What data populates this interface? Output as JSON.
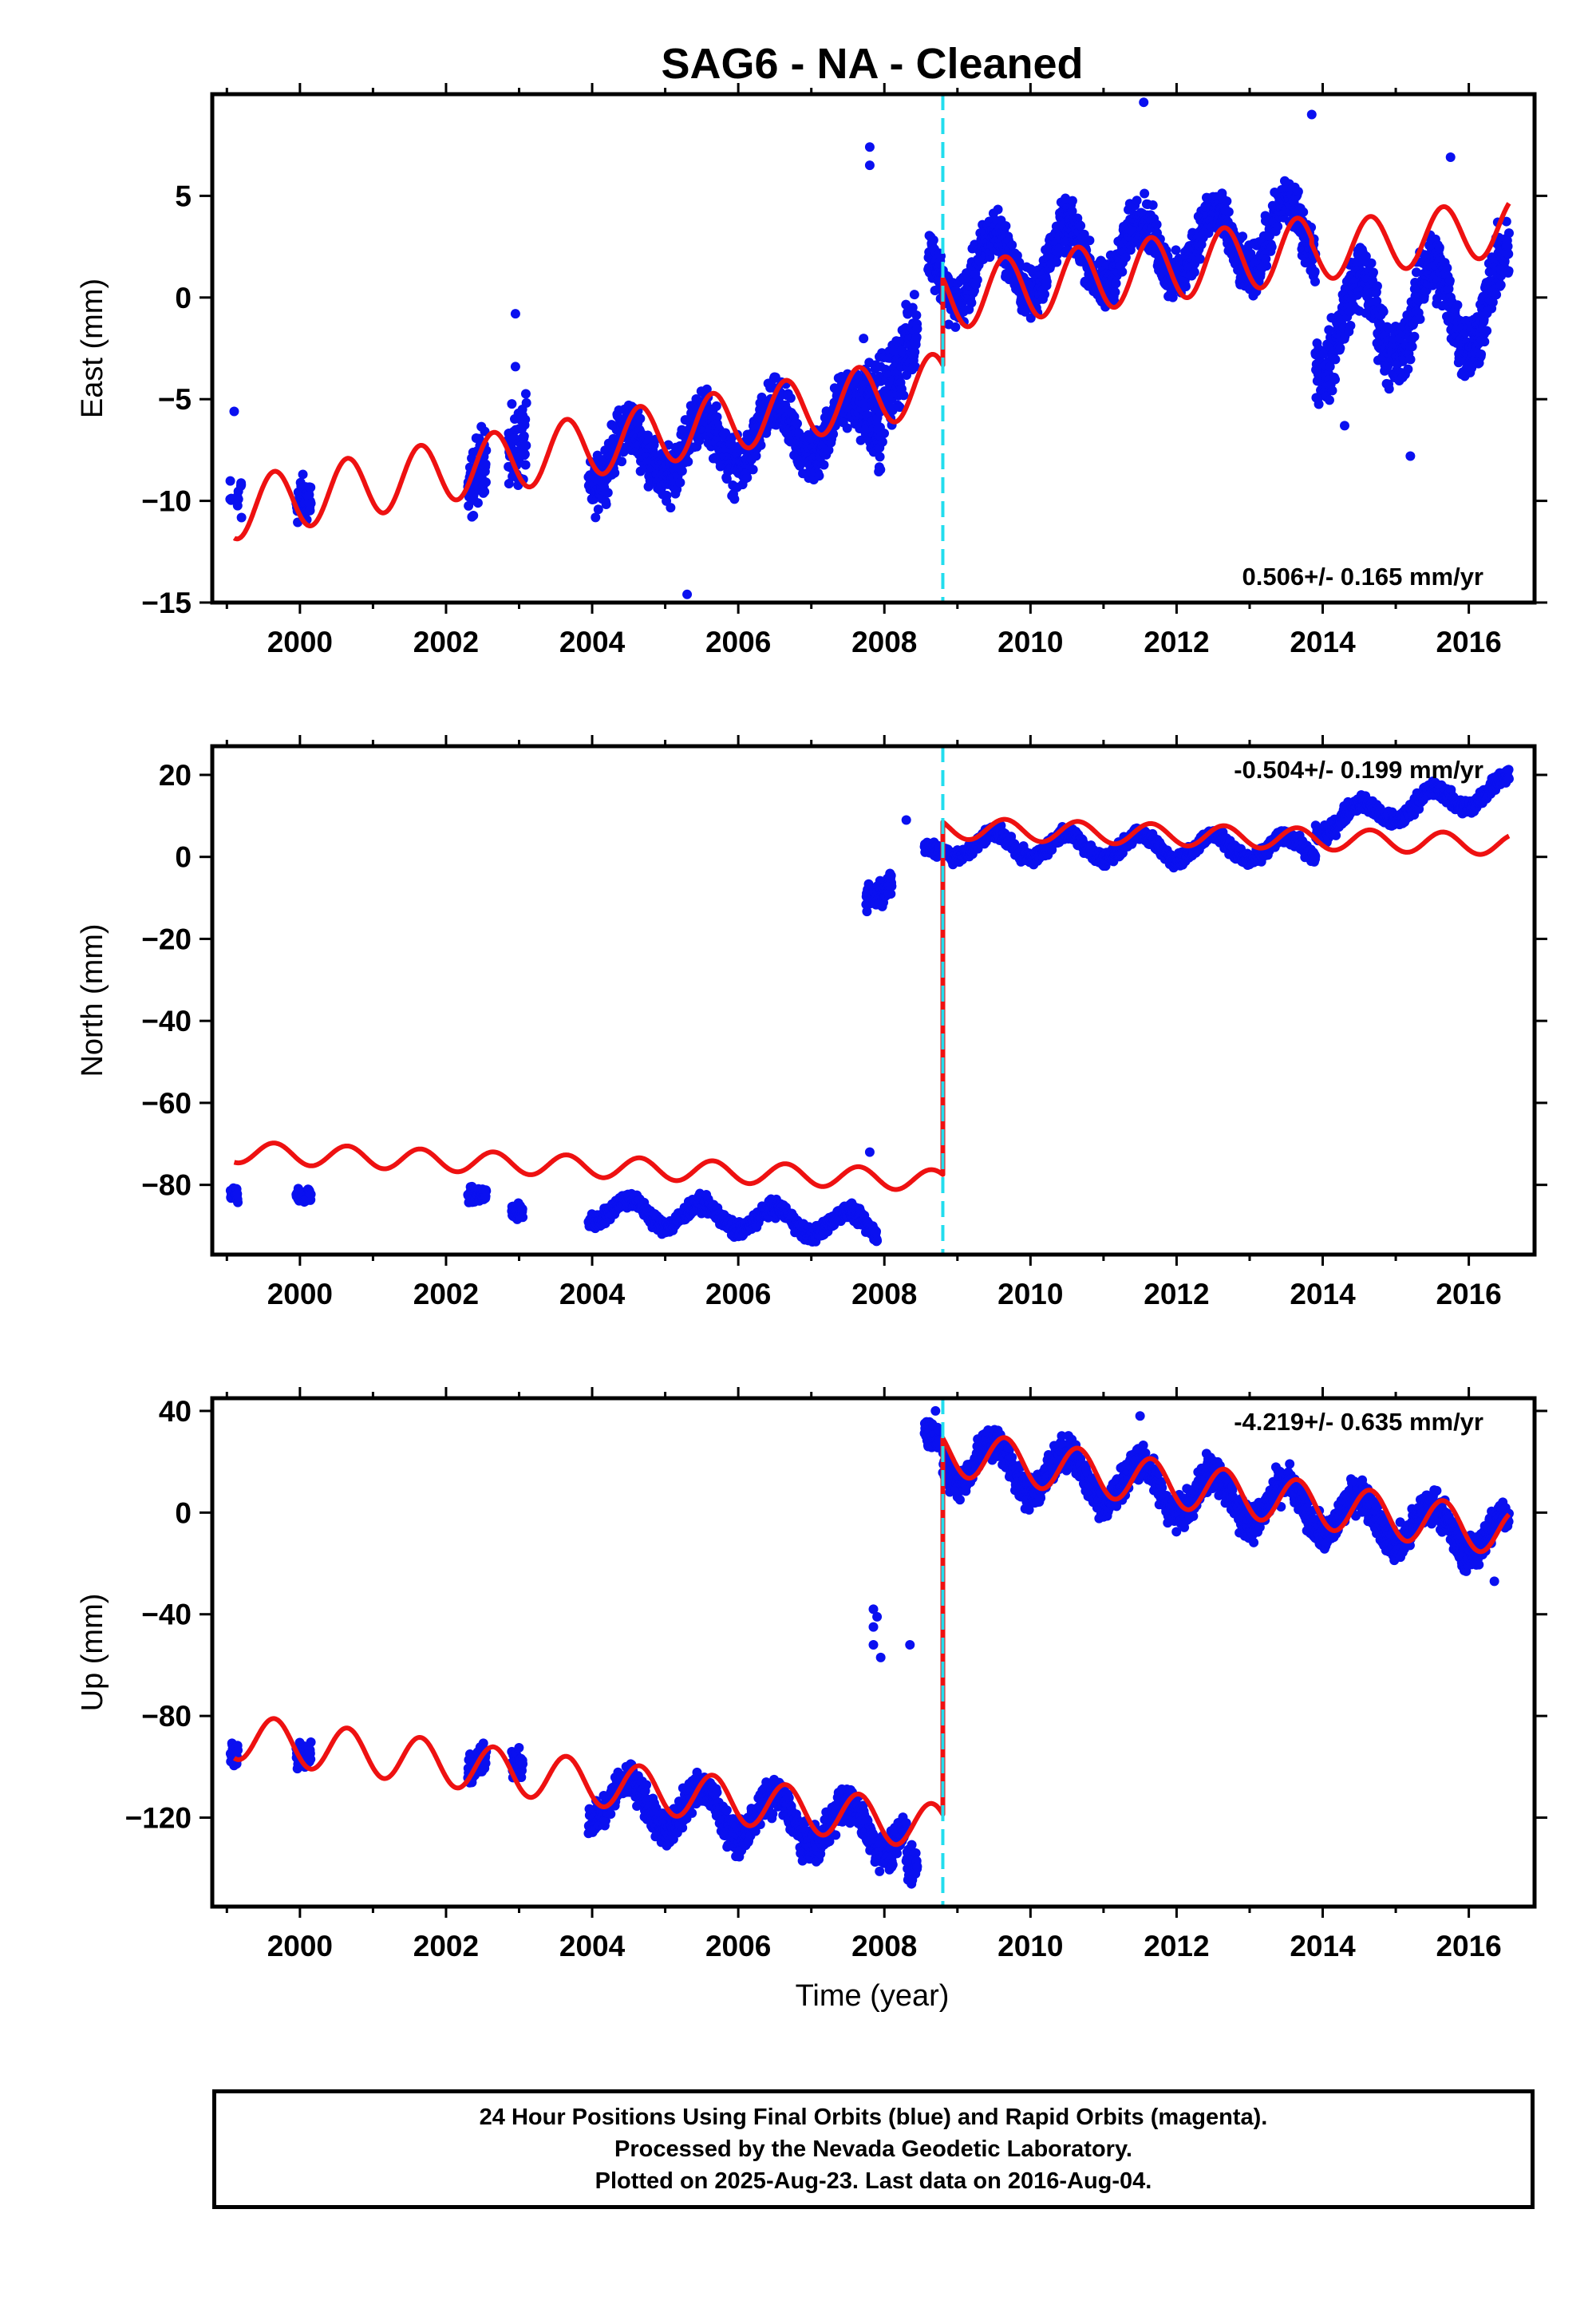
{
  "title": "SAG6  - NA - Cleaned",
  "colors": {
    "data": "#0a10f0",
    "model": "#ee1111",
    "offset": "#22ddee",
    "frame": "#000000"
  },
  "x_axis": {
    "label": "Time (year)",
    "range": [
      1998.8,
      2016.9
    ],
    "ticks": [
      "2000",
      "2002",
      "2004",
      "2006",
      "2008",
      "2010",
      "2012",
      "2014",
      "2016"
    ]
  },
  "footer": {
    "line1": "24 Hour Positions Using Final Orbits (blue) and Rapid Orbits (magenta).",
    "line2": "Processed by the Nevada Geodetic Laboratory.",
    "line3": "Plotted on 2025-Aug-23. Last data on 2016-Aug-04."
  },
  "chart_data": [
    {
      "type": "scatter",
      "ylabel": "East (mm)",
      "xlim": [
        1998.8,
        2016.9
      ],
      "ylim": [
        -15,
        10
      ],
      "yticks": [
        5,
        0,
        -5,
        -10,
        -15
      ],
      "ytick_labels": [
        "5",
        "0",
        "−5",
        "−10",
        "−15"
      ],
      "rate_text": "0.506+/- 0.165 mm/yr",
      "rate_position": "bottom-right",
      "offset_epoch": 2008.8,
      "series": [
        {
          "kind": "points",
          "segments": [
            {
              "x": [
                1999.05,
                1999.15,
                1999.2
              ],
              "base": [
                -10,
                -10,
                -10
              ],
              "amp": 0.5,
              "noise": 1.1
            },
            {
              "x": [
                1999.95,
                2000.15
              ],
              "base": [
                -9.5,
                -9.5
              ],
              "amp": 0.5,
              "noise": 1.0
            },
            {
              "x": [
                2002.3,
                2002.55
              ],
              "base": [
                -10,
                -8
              ],
              "amp": 0.5,
              "noise": 1.4
            },
            {
              "x": [
                2002.85,
                2003.1
              ],
              "base": [
                -7.5,
                -6.5
              ],
              "amp": 0.5,
              "noise": 1.6
            },
            {
              "x": [
                2003.95,
                2007.95
              ],
              "base": [
                -8,
                -6
              ],
              "amp": 1.4,
              "noise": 1.1
            },
            {
              "x": [
                2007.7,
                2008.45
              ],
              "base": [
                -4.5,
                -2.5
              ],
              "amp": 1.0,
              "noise": 1.6
            },
            {
              "x": [
                2008.6,
                2013.9
              ],
              "base": [
                1.2,
                3.2
              ],
              "amp": 1.6,
              "noise": 1.0
            },
            {
              "x": [
                2013.9,
                2016.55
              ],
              "base": [
                -1.5,
                0
              ],
              "amp": 2.2,
              "noise": 1.4
            }
          ],
          "outliers": [
            [
              1999.1,
              -5.6
            ],
            [
              2002.95,
              -0.8
            ],
            [
              2002.95,
              -3.4
            ],
            [
              2003.05,
              -5.8
            ],
            [
              2005.3,
              -14.6
            ],
            [
              2007.8,
              7.4
            ],
            [
              2007.8,
              6.5
            ],
            [
              2011.55,
              9.6
            ],
            [
              2013.85,
              9.0
            ],
            [
              2014.3,
              -6.3
            ],
            [
              2015.2,
              -7.8
            ],
            [
              2015.75,
              6.9
            ]
          ]
        },
        {
          "kind": "model",
          "segments": [
            {
              "x": [
                1999.1,
                2008.8
              ],
              "base": [
                -10.4,
                -4.2
              ],
              "amp": 1.5
            },
            {
              "x": [
                2008.8,
                2013.85
              ],
              "base": [
                0.0,
                2.4
              ],
              "amp": 1.6
            },
            {
              "x": [
                2013.85,
                2016.55
              ],
              "base": [
                2.2,
                3.5
              ],
              "amp": 1.4
            }
          ]
        }
      ]
    },
    {
      "type": "scatter",
      "ylabel": "North (mm)",
      "xlim": [
        1998.8,
        2016.9
      ],
      "ylim": [
        -97,
        27
      ],
      "yticks": [
        20,
        0,
        -20,
        -40,
        -60,
        -80
      ],
      "ytick_labels": [
        "20",
        "0",
        "−20",
        "−40",
        "−60",
        "−80"
      ],
      "rate_text": "-0.504+/- 0.199 mm/yr",
      "rate_position": "top-right",
      "offset_epoch": 2008.8,
      "series": [
        {
          "kind": "points",
          "segments": [
            {
              "x": [
                1999.05,
                1999.15
              ],
              "base": [
                -82,
                -82
              ],
              "amp": 0.5,
              "noise": 1.5
            },
            {
              "x": [
                1999.95,
                2000.15
              ],
              "base": [
                -82,
                -82
              ],
              "amp": 0.5,
              "noise": 1.5
            },
            {
              "x": [
                2002.3,
                2002.55
              ],
              "base": [
                -83,
                -83
              ],
              "amp": 0.5,
              "noise": 1.5
            },
            {
              "x": [
                2002.9,
                2003.05
              ],
              "base": [
                -86,
                -86
              ],
              "amp": 0.5,
              "noise": 1.8
            },
            {
              "x": [
                2003.95,
                2007.9
              ],
              "base": [
                -86,
                -90
              ],
              "amp": 3.0,
              "noise": 1.6
            },
            {
              "x": [
                2007.75,
                2008.1
              ],
              "base": [
                -10,
                -6
              ],
              "amp": 1.0,
              "noise": 2.5
            },
            {
              "x": [
                2008.55,
                2008.75
              ],
              "base": [
                2,
                2
              ],
              "amp": 0.5,
              "noise": 1.5
            },
            {
              "x": [
                2008.8,
                2013.9
              ],
              "base": [
                3,
                2
              ],
              "amp": 3.0,
              "noise": 1.4
            },
            {
              "x": [
                2013.9,
                2016.55
              ],
              "base": [
                8,
                17
              ],
              "amp": 3.0,
              "noise": 1.6
            }
          ],
          "outliers": [
            [
              2007.8,
              -72
            ],
            [
              2008.3,
              9
            ]
          ]
        },
        {
          "kind": "model",
          "segments": [
            {
              "x": [
                1999.1,
                2008.8
              ],
              "base": [
                -72,
                -79
              ],
              "amp": 2.6
            },
            {
              "x": [
                2008.8,
                2016.55
              ],
              "base": [
                7,
                3
              ],
              "amp": 2.6
            }
          ]
        }
      ]
    },
    {
      "type": "scatter",
      "ylabel": "Up (mm)",
      "xlim": [
        1998.8,
        2016.9
      ],
      "ylim": [
        -155,
        45
      ],
      "yticks": [
        40,
        0,
        -40,
        -80,
        -120
      ],
      "ytick_labels": [
        "40",
        "0",
        "−40",
        "−80",
        "−120"
      ],
      "rate_text": "-4.219+/- 0.635 mm/yr",
      "rate_position": "top-right",
      "offset_epoch": 2008.8,
      "series": [
        {
          "kind": "points",
          "segments": [
            {
              "x": [
                1999.05,
                1999.15
              ],
              "base": [
                -93,
                -93
              ],
              "amp": 1,
              "noise": 4
            },
            {
              "x": [
                1999.95,
                2000.15
              ],
              "base": [
                -95,
                -95
              ],
              "amp": 1,
              "noise": 4
            },
            {
              "x": [
                2002.3,
                2002.55
              ],
              "base": [
                -104,
                -100
              ],
              "amp": 3,
              "noise": 5
            },
            {
              "x": [
                2002.9,
                2003.05
              ],
              "base": [
                -95,
                -95
              ],
              "amp": 3,
              "noise": 5
            },
            {
              "x": [
                2003.95,
                2008.3
              ],
              "base": [
                -112,
                -126
              ],
              "amp": 9,
              "noise": 5.5
            },
            {
              "x": [
                2008.3,
                2008.45
              ],
              "base": [
                -138,
                -138
              ],
              "amp": 1,
              "noise": 6
            },
            {
              "x": [
                2008.55,
                2008.75
              ],
              "base": [
                30,
                30
              ],
              "amp": 2,
              "noise": 5
            },
            {
              "x": [
                2008.8,
                2016.55
              ],
              "base": [
                22,
                -10
              ],
              "amp": 9,
              "noise": 5.5
            }
          ],
          "outliers": [
            [
              2007.85,
              -38
            ],
            [
              2007.85,
              -45
            ],
            [
              2007.85,
              -52
            ],
            [
              2007.9,
              -41
            ],
            [
              2007.95,
              -57
            ],
            [
              2008.35,
              -52
            ],
            [
              2008.7,
              40
            ],
            [
              2011.5,
              38
            ],
            [
              2016.35,
              -27
            ]
          ]
        },
        {
          "kind": "model",
          "segments": [
            {
              "x": [
                1999.1,
                2008.8
              ],
              "base": [
                -88,
                -124
              ],
              "amp": 9
            },
            {
              "x": [
                2008.8,
                2016.55
              ],
              "base": [
                24,
                -8
              ],
              "amp": 9
            }
          ]
        }
      ]
    }
  ]
}
